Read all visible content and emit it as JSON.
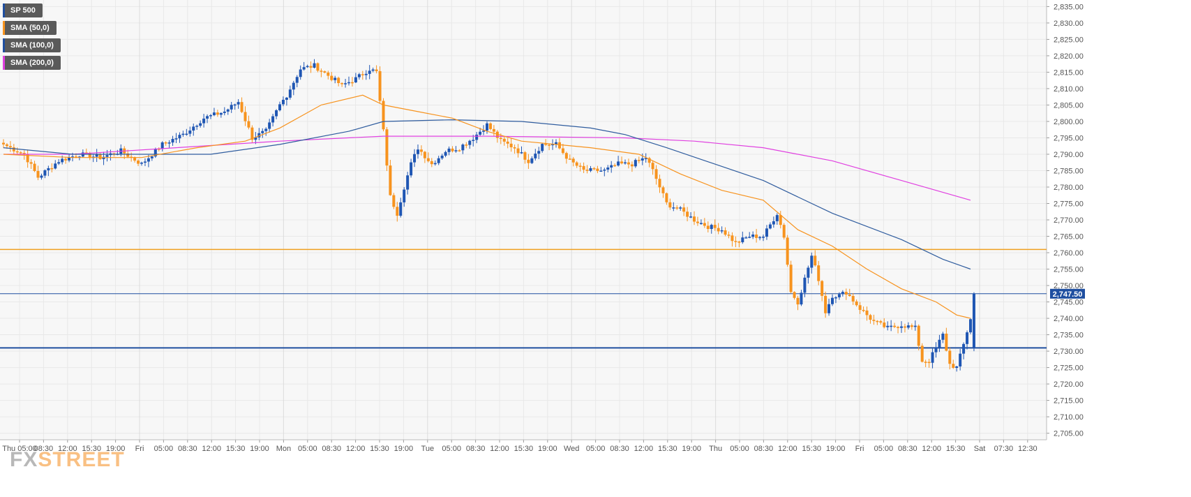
{
  "legend": [
    {
      "label": "SP 500",
      "color": "#1f4fa0"
    },
    {
      "label": "SMA (50,0)",
      "color": "#f7931e"
    },
    {
      "label": "SMA (100,0)",
      "color": "#1f4fa0"
    },
    {
      "label": "SMA (200,0)",
      "color": "#e040e0"
    }
  ],
  "brand": {
    "fx": "FX",
    "street": "STREET"
  },
  "colors": {
    "up": "#1f56b3",
    "down": "#f7931e",
    "sma50": "#f7931e",
    "sma100": "#2f5c9e",
    "sma200": "#e040e0",
    "grid": "#e8e8e8",
    "plot_bg": "#f7f7f7",
    "last_price_bg": "#1f4fa0",
    "support_line": "#1f4fa0",
    "resistance_line": "#f0a020"
  },
  "chart_data": {
    "type": "candlestick",
    "instrument": "SP 500",
    "ylim": [
      2703,
      2837
    ],
    "y_ticks": [
      "2,705.00",
      "2,710.00",
      "2,715.00",
      "2,720.00",
      "2,725.00",
      "2,730.00",
      "2,735.00",
      "2,740.00",
      "2,745.00",
      "2,750.00",
      "2,755.00",
      "2,760.00",
      "2,765.00",
      "2,770.00",
      "2,775.00",
      "2,780.00",
      "2,785.00",
      "2,790.00",
      "2,795.00",
      "2,800.00",
      "2,805.00",
      "2,810.00",
      "2,815.00",
      "2,820.00",
      "2,825.00",
      "2,830.00",
      "2,835.00"
    ],
    "x_ticks": [
      "Thu 05:00",
      "08:30",
      "12:00",
      "15:30",
      "19:00",
      "Fri",
      "05:00",
      "08:30",
      "12:00",
      "15:30",
      "19:00",
      "Mon",
      "05:00",
      "08:30",
      "12:00",
      "15:30",
      "19:00",
      "Tue",
      "05:00",
      "08:30",
      "12:00",
      "15:30",
      "19:00",
      "Wed",
      "05:00",
      "08:30",
      "12:00",
      "15:30",
      "19:00",
      "Thu",
      "05:00",
      "08:30",
      "12:00",
      "15:30",
      "19:00",
      "Fri",
      "05:00",
      "08:30",
      "12:00",
      "15:30",
      "Sat",
      "07:30",
      "12:30"
    ],
    "separator_ticks": [
      "Fri",
      "Mon",
      "Tue",
      "Wed",
      "Thu",
      "Fri",
      "Sat"
    ],
    "last_price": "2,747.50",
    "horizontal_levels": {
      "resistance": 2761,
      "support": 2731
    },
    "close_anchors": [
      [
        0,
        2793
      ],
      [
        6,
        2790
      ],
      [
        10,
        2783
      ],
      [
        16,
        2788
      ],
      [
        22,
        2790
      ],
      [
        28,
        2789
      ],
      [
        34,
        2791
      ],
      [
        40,
        2787
      ],
      [
        46,
        2793
      ],
      [
        52,
        2796
      ],
      [
        58,
        2801
      ],
      [
        64,
        2803
      ],
      [
        68,
        2806
      ],
      [
        72,
        2795
      ],
      [
        76,
        2797
      ],
      [
        80,
        2805
      ],
      [
        82,
        2808
      ],
      [
        86,
        2816
      ],
      [
        90,
        2817
      ],
      [
        94,
        2814
      ],
      [
        98,
        2811
      ],
      [
        102,
        2813
      ],
      [
        106,
        2816
      ],
      [
        108,
        2815
      ],
      [
        110,
        2797
      ],
      [
        112,
        2777
      ],
      [
        114,
        2772
      ],
      [
        116,
        2780
      ],
      [
        118,
        2787
      ],
      [
        120,
        2792
      ],
      [
        124,
        2787
      ],
      [
        128,
        2791
      ],
      [
        132,
        2792
      ],
      [
        136,
        2795
      ],
      [
        140,
        2799
      ],
      [
        144,
        2794
      ],
      [
        148,
        2792
      ],
      [
        152,
        2788
      ],
      [
        156,
        2793
      ],
      [
        160,
        2793
      ],
      [
        164,
        2788
      ],
      [
        168,
        2785
      ],
      [
        174,
        2785
      ],
      [
        178,
        2787
      ],
      [
        182,
        2787
      ],
      [
        186,
        2789
      ],
      [
        188,
        2785
      ],
      [
        192,
        2775
      ],
      [
        196,
        2773
      ],
      [
        200,
        2770
      ],
      [
        204,
        2768
      ],
      [
        208,
        2767
      ],
      [
        212,
        2763
      ],
      [
        216,
        2765
      ],
      [
        220,
        2765
      ],
      [
        224,
        2772
      ],
      [
        226,
        2765
      ],
      [
        228,
        2748
      ],
      [
        230,
        2745
      ],
      [
        232,
        2752
      ],
      [
        234,
        2759
      ],
      [
        236,
        2752
      ],
      [
        238,
        2742
      ],
      [
        240,
        2747
      ],
      [
        242,
        2747
      ],
      [
        244,
        2748
      ],
      [
        248,
        2743
      ],
      [
        252,
        2739
      ],
      [
        256,
        2737
      ],
      [
        260,
        2738
      ],
      [
        264,
        2737
      ],
      [
        266,
        2727
      ],
      [
        268,
        2727
      ],
      [
        270,
        2731
      ],
      [
        272,
        2735
      ],
      [
        274,
        2726
      ],
      [
        276,
        2725
      ],
      [
        278,
        2732
      ],
      [
        280,
        2740
      ],
      [
        281,
        2747.5
      ]
    ],
    "sma50_points": [
      [
        0,
        2790
      ],
      [
        20,
        2789
      ],
      [
        40,
        2789
      ],
      [
        56,
        2792
      ],
      [
        70,
        2794
      ],
      [
        80,
        2798
      ],
      [
        92,
        2805
      ],
      [
        104,
        2808
      ],
      [
        110,
        2805
      ],
      [
        120,
        2803
      ],
      [
        130,
        2801
      ],
      [
        140,
        2797
      ],
      [
        150,
        2794
      ],
      [
        160,
        2793
      ],
      [
        170,
        2792
      ],
      [
        184,
        2790
      ],
      [
        196,
        2784
      ],
      [
        208,
        2779
      ],
      [
        220,
        2776
      ],
      [
        230,
        2767
      ],
      [
        240,
        2762
      ],
      [
        250,
        2755
      ],
      [
        260,
        2749
      ],
      [
        270,
        2745
      ],
      [
        276,
        2741
      ],
      [
        280,
        2740
      ]
    ],
    "sma100_points": [
      [
        0,
        2792
      ],
      [
        20,
        2790
      ],
      [
        40,
        2790
      ],
      [
        60,
        2790
      ],
      [
        80,
        2793
      ],
      [
        100,
        2797
      ],
      [
        110,
        2800
      ],
      [
        130,
        2800.5
      ],
      [
        150,
        2800
      ],
      [
        170,
        2798
      ],
      [
        180,
        2796
      ],
      [
        192,
        2792
      ],
      [
        206,
        2787
      ],
      [
        220,
        2782
      ],
      [
        240,
        2772
      ],
      [
        260,
        2764
      ],
      [
        272,
        2758
      ],
      [
        280,
        2755
      ]
    ],
    "sma200_points": [
      [
        0,
        2790
      ],
      [
        20,
        2790
      ],
      [
        50,
        2792
      ],
      [
        80,
        2794
      ],
      [
        110,
        2795.5
      ],
      [
        140,
        2795.5
      ],
      [
        180,
        2795
      ],
      [
        200,
        2794
      ],
      [
        220,
        2792
      ],
      [
        240,
        2788
      ],
      [
        260,
        2782
      ],
      [
        280,
        2776
      ]
    ]
  }
}
